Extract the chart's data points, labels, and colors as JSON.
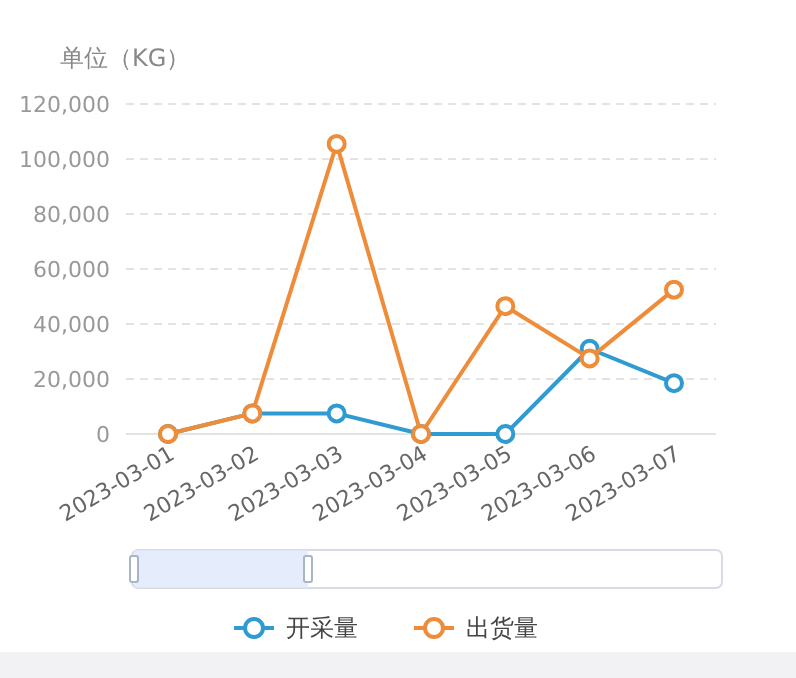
{
  "chart_data": {
    "type": "line",
    "ylabel": "单位（KG）",
    "categories": [
      "2023-03-01",
      "2023-03-02",
      "2023-03-03",
      "2023-03-04",
      "2023-03-05",
      "2023-03-06",
      "2023-03-07"
    ],
    "series": [
      {
        "name": "开采量",
        "color": "#2f9bd0",
        "values": [
          0,
          7500,
          7500,
          0,
          0,
          31000,
          18500
        ]
      },
      {
        "name": "出货量",
        "color": "#ee8c3a",
        "values": [
          0,
          7500,
          105500,
          0,
          46500,
          27500,
          52500
        ]
      }
    ],
    "ylim": [
      0,
      120000
    ],
    "yticks": [
      {
        "value": 0,
        "label": "0"
      },
      {
        "value": 20000,
        "label": "20,000"
      },
      {
        "value": 40000,
        "label": "40,000"
      },
      {
        "value": 60000,
        "label": "60,000"
      },
      {
        "value": 80000,
        "label": "80,000"
      },
      {
        "value": 100000,
        "label": "100,000"
      },
      {
        "value": 120000,
        "label": "120,000"
      }
    ],
    "grid": "y",
    "legend": "bottom",
    "marker": "circle",
    "line_style": "solid"
  }
}
